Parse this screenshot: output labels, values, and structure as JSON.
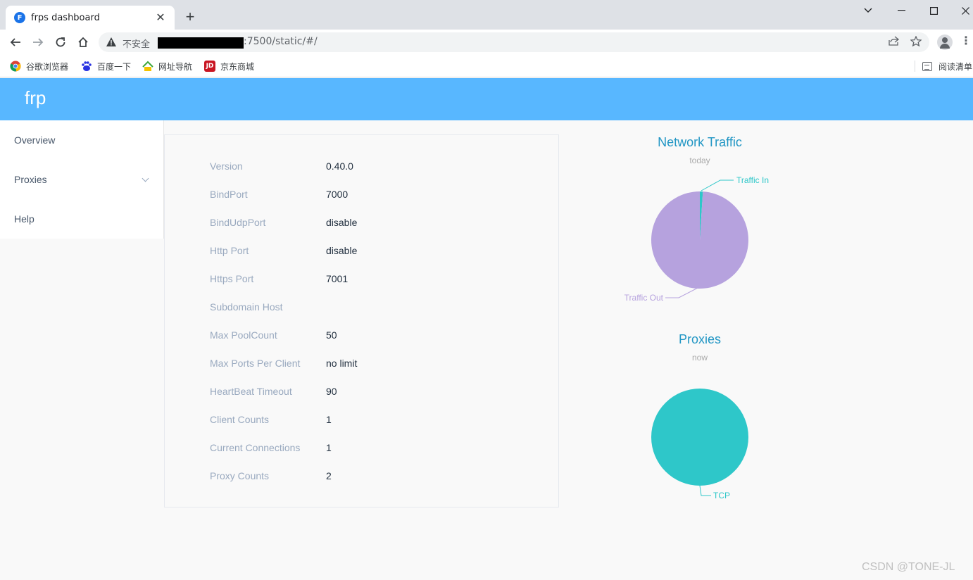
{
  "browser": {
    "tab_title": "frps dashboard",
    "tab_favicon": "F",
    "new_tab": "+",
    "close_tab": "✕",
    "insecure_label": "不安全",
    "url": ":7500/static/#/",
    "bookmarks": [
      {
        "label": "谷歌浏览器",
        "icon": "chrome-icon",
        "color": "#ea4335"
      },
      {
        "label": "百度一下",
        "icon": "baidu-icon",
        "color": "#2932e1"
      },
      {
        "label": "网址导航",
        "icon": "hao123-icon",
        "color": "#3aa53a"
      },
      {
        "label": "京东商城",
        "icon": "jd-icon",
        "color": "#c91623"
      }
    ],
    "reading_list": "阅读清单"
  },
  "app": {
    "brand": "frp",
    "header_color": "#58b7ff"
  },
  "sidebar": {
    "items": [
      {
        "label": "Overview"
      },
      {
        "label": "Proxies"
      },
      {
        "label": "Help"
      }
    ]
  },
  "server_info": {
    "rows": [
      {
        "label": "Version",
        "value": "0.40.0"
      },
      {
        "label": "BindPort",
        "value": "7000"
      },
      {
        "label": "BindUdpPort",
        "value": "disable"
      },
      {
        "label": "Http Port",
        "value": "disable"
      },
      {
        "label": "Https Port",
        "value": "7001"
      },
      {
        "label": "Subdomain Host",
        "value": ""
      },
      {
        "label": "Max PoolCount",
        "value": "50"
      },
      {
        "label": "Max Ports Per Client",
        "value": "no limit"
      },
      {
        "label": "HeartBeat Timeout",
        "value": "90"
      },
      {
        "label": "Client Counts",
        "value": "1"
      },
      {
        "label": "Current Connections",
        "value": "1"
      },
      {
        "label": "Proxy Counts",
        "value": "2"
      }
    ]
  },
  "chart_data": [
    {
      "type": "pie",
      "title": "Network Traffic",
      "subtitle": "today",
      "slices": [
        {
          "name": "Traffic In",
          "value": 1,
          "color": "#2ec7c9"
        },
        {
          "name": "Traffic Out",
          "value": 99,
          "color": "#b6a2de"
        }
      ]
    },
    {
      "type": "pie",
      "title": "Proxies",
      "subtitle": "now",
      "slices": [
        {
          "name": "TCP",
          "value": 100,
          "color": "#2ec7c9"
        }
      ]
    }
  ],
  "watermark": "CSDN @TONE-JL"
}
